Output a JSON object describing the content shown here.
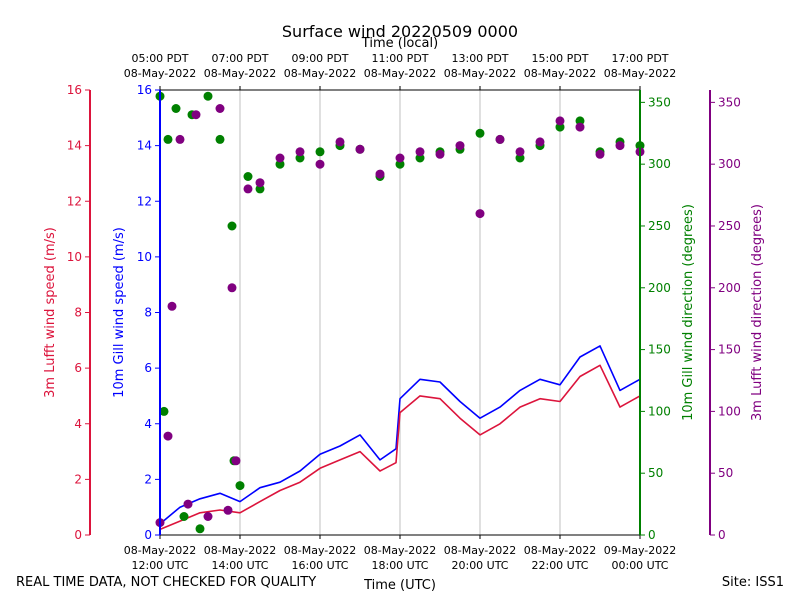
{
  "chart_data": {
    "type": "line",
    "title": "Surface wind 20220509 0000",
    "top_axis_label": "Time (local)",
    "xlabel": "Time (UTC)",
    "bottom_ticks": [
      {
        "hour": 0,
        "line1": "08-May-2022",
        "line2": "12:00 UTC"
      },
      {
        "hour": 2,
        "line1": "08-May-2022",
        "line2": "14:00 UTC"
      },
      {
        "hour": 4,
        "line1": "08-May-2022",
        "line2": "16:00 UTC"
      },
      {
        "hour": 6,
        "line1": "08-May-2022",
        "line2": "18:00 UTC"
      },
      {
        "hour": 8,
        "line1": "08-May-2022",
        "line2": "20:00 UTC"
      },
      {
        "hour": 10,
        "line1": "08-May-2022",
        "line2": "22:00 UTC"
      },
      {
        "hour": 12,
        "line1": "09-May-2022",
        "line2": "00:00 UTC"
      }
    ],
    "top_ticks": [
      {
        "hour": 0,
        "line1": "05:00 PDT",
        "line2": "08-May-2022"
      },
      {
        "hour": 2,
        "line1": "07:00 PDT",
        "line2": "08-May-2022"
      },
      {
        "hour": 4,
        "line1": "09:00 PDT",
        "line2": "08-May-2022"
      },
      {
        "hour": 6,
        "line1": "11:00 PDT",
        "line2": "08-May-2022"
      },
      {
        "hour": 8,
        "line1": "13:00 PDT",
        "line2": "08-May-2022"
      },
      {
        "hour": 10,
        "line1": "15:00 PDT",
        "line2": "08-May-2022"
      },
      {
        "hour": 12,
        "line1": "17:00 PDT",
        "line2": "08-May-2022"
      }
    ],
    "x_range_hours": [
      0,
      12
    ],
    "grid": "vertical",
    "axes": {
      "gill_speed": {
        "label": "10m Gill wind speed (m/s)",
        "range": [
          0,
          16
        ],
        "ticks": [
          0,
          2,
          4,
          6,
          8,
          10,
          12,
          14,
          16
        ],
        "color": "#0000ff",
        "side": "left-inner"
      },
      "lufft_speed": {
        "label": "3m Lufft wind speed (m/s)",
        "range": [
          0,
          16
        ],
        "ticks": [
          0,
          2,
          4,
          6,
          8,
          10,
          12,
          14,
          16
        ],
        "color": "#dc143c",
        "side": "left-outer"
      },
      "gill_dir": {
        "label": "10m Gill wind direction (degrees)",
        "range": [
          0,
          360
        ],
        "ticks": [
          0,
          50,
          100,
          150,
          200,
          250,
          300,
          350
        ],
        "color": "#008000",
        "side": "right-inner"
      },
      "lufft_dir": {
        "label": "3m Lufft wind direction (degrees)",
        "range": [
          0,
          360
        ],
        "ticks": [
          0,
          50,
          100,
          150,
          200,
          250,
          300,
          350
        ],
        "color": "#800080",
        "side": "right-outer"
      }
    },
    "series": [
      {
        "name": "10m Gill wind speed",
        "kind": "line",
        "axis": "gill_speed",
        "color": "#0000ff",
        "points": [
          [
            0.0,
            0.4
          ],
          [
            0.5,
            1.0
          ],
          [
            1.0,
            1.3
          ],
          [
            1.5,
            1.5
          ],
          [
            2.0,
            1.2
          ],
          [
            2.5,
            1.7
          ],
          [
            3.0,
            1.9
          ],
          [
            3.5,
            2.3
          ],
          [
            4.0,
            2.9
          ],
          [
            4.5,
            3.2
          ],
          [
            5.0,
            3.6
          ],
          [
            5.5,
            2.7
          ],
          [
            5.9,
            3.1
          ],
          [
            6.0,
            4.9
          ],
          [
            6.5,
            5.6
          ],
          [
            7.0,
            5.5
          ],
          [
            7.5,
            4.8
          ],
          [
            8.0,
            4.2
          ],
          [
            8.5,
            4.6
          ],
          [
            9.0,
            5.2
          ],
          [
            9.5,
            5.6
          ],
          [
            10.0,
            5.4
          ],
          [
            10.5,
            6.4
          ],
          [
            11.0,
            6.8
          ],
          [
            11.5,
            5.2
          ],
          [
            12.0,
            5.6
          ]
        ]
      },
      {
        "name": "3m Lufft wind speed",
        "kind": "line",
        "axis": "lufft_speed",
        "color": "#dc143c",
        "points": [
          [
            0.0,
            0.2
          ],
          [
            0.5,
            0.5
          ],
          [
            1.0,
            0.8
          ],
          [
            1.5,
            0.9
          ],
          [
            2.0,
            0.8
          ],
          [
            2.5,
            1.2
          ],
          [
            3.0,
            1.6
          ],
          [
            3.5,
            1.9
          ],
          [
            4.0,
            2.4
          ],
          [
            4.5,
            2.7
          ],
          [
            5.0,
            3.0
          ],
          [
            5.5,
            2.3
          ],
          [
            5.9,
            2.6
          ],
          [
            6.0,
            4.4
          ],
          [
            6.5,
            5.0
          ],
          [
            7.0,
            4.9
          ],
          [
            7.5,
            4.2
          ],
          [
            8.0,
            3.6
          ],
          [
            8.5,
            4.0
          ],
          [
            9.0,
            4.6
          ],
          [
            9.5,
            4.9
          ],
          [
            10.0,
            4.8
          ],
          [
            10.5,
            5.7
          ],
          [
            11.0,
            6.1
          ],
          [
            11.5,
            4.6
          ],
          [
            12.0,
            5.0
          ]
        ]
      },
      {
        "name": "10m Gill wind direction",
        "kind": "scatter",
        "axis": "gill_dir",
        "color": "#008000",
        "points": [
          [
            0.0,
            355
          ],
          [
            0.1,
            100
          ],
          [
            0.2,
            320
          ],
          [
            0.4,
            345
          ],
          [
            0.6,
            15
          ],
          [
            0.8,
            340
          ],
          [
            1.0,
            5
          ],
          [
            1.2,
            355
          ],
          [
            1.5,
            320
          ],
          [
            1.8,
            250
          ],
          [
            1.85,
            60
          ],
          [
            2.0,
            40
          ],
          [
            2.2,
            290
          ],
          [
            2.5,
            280
          ],
          [
            3.0,
            300
          ],
          [
            3.5,
            305
          ],
          [
            4.0,
            310
          ],
          [
            4.5,
            315
          ],
          [
            5.0,
            312
          ],
          [
            5.5,
            290
          ],
          [
            6.0,
            300
          ],
          [
            6.5,
            305
          ],
          [
            7.0,
            310
          ],
          [
            7.5,
            312
          ],
          [
            8.0,
            325
          ],
          [
            8.5,
            320
          ],
          [
            9.0,
            305
          ],
          [
            9.5,
            315
          ],
          [
            10.0,
            330
          ],
          [
            10.5,
            335
          ],
          [
            11.0,
            310
          ],
          [
            11.5,
            318
          ],
          [
            12.0,
            315
          ]
        ]
      },
      {
        "name": "3m Lufft wind direction",
        "kind": "scatter",
        "axis": "lufft_dir",
        "color": "#800080",
        "points": [
          [
            0.0,
            10
          ],
          [
            0.2,
            80
          ],
          [
            0.3,
            185
          ],
          [
            0.5,
            320
          ],
          [
            0.7,
            25
          ],
          [
            0.9,
            340
          ],
          [
            1.2,
            15
          ],
          [
            1.5,
            345
          ],
          [
            1.7,
            20
          ],
          [
            1.8,
            200
          ],
          [
            1.9,
            60
          ],
          [
            2.2,
            280
          ],
          [
            2.5,
            285
          ],
          [
            3.0,
            305
          ],
          [
            3.5,
            310
          ],
          [
            4.0,
            300
          ],
          [
            4.5,
            318
          ],
          [
            5.0,
            312
          ],
          [
            5.5,
            292
          ],
          [
            6.0,
            305
          ],
          [
            6.5,
            310
          ],
          [
            7.0,
            308
          ],
          [
            7.5,
            315
          ],
          [
            8.0,
            260
          ],
          [
            8.5,
            320
          ],
          [
            9.0,
            310
          ],
          [
            9.5,
            318
          ],
          [
            10.0,
            335
          ],
          [
            10.5,
            330
          ],
          [
            11.0,
            308
          ],
          [
            11.5,
            315
          ],
          [
            12.0,
            310
          ]
        ]
      }
    ]
  },
  "footer": {
    "quality_note": "REAL TIME DATA, NOT CHECKED FOR QUALITY",
    "site": "Site: ISS1"
  }
}
